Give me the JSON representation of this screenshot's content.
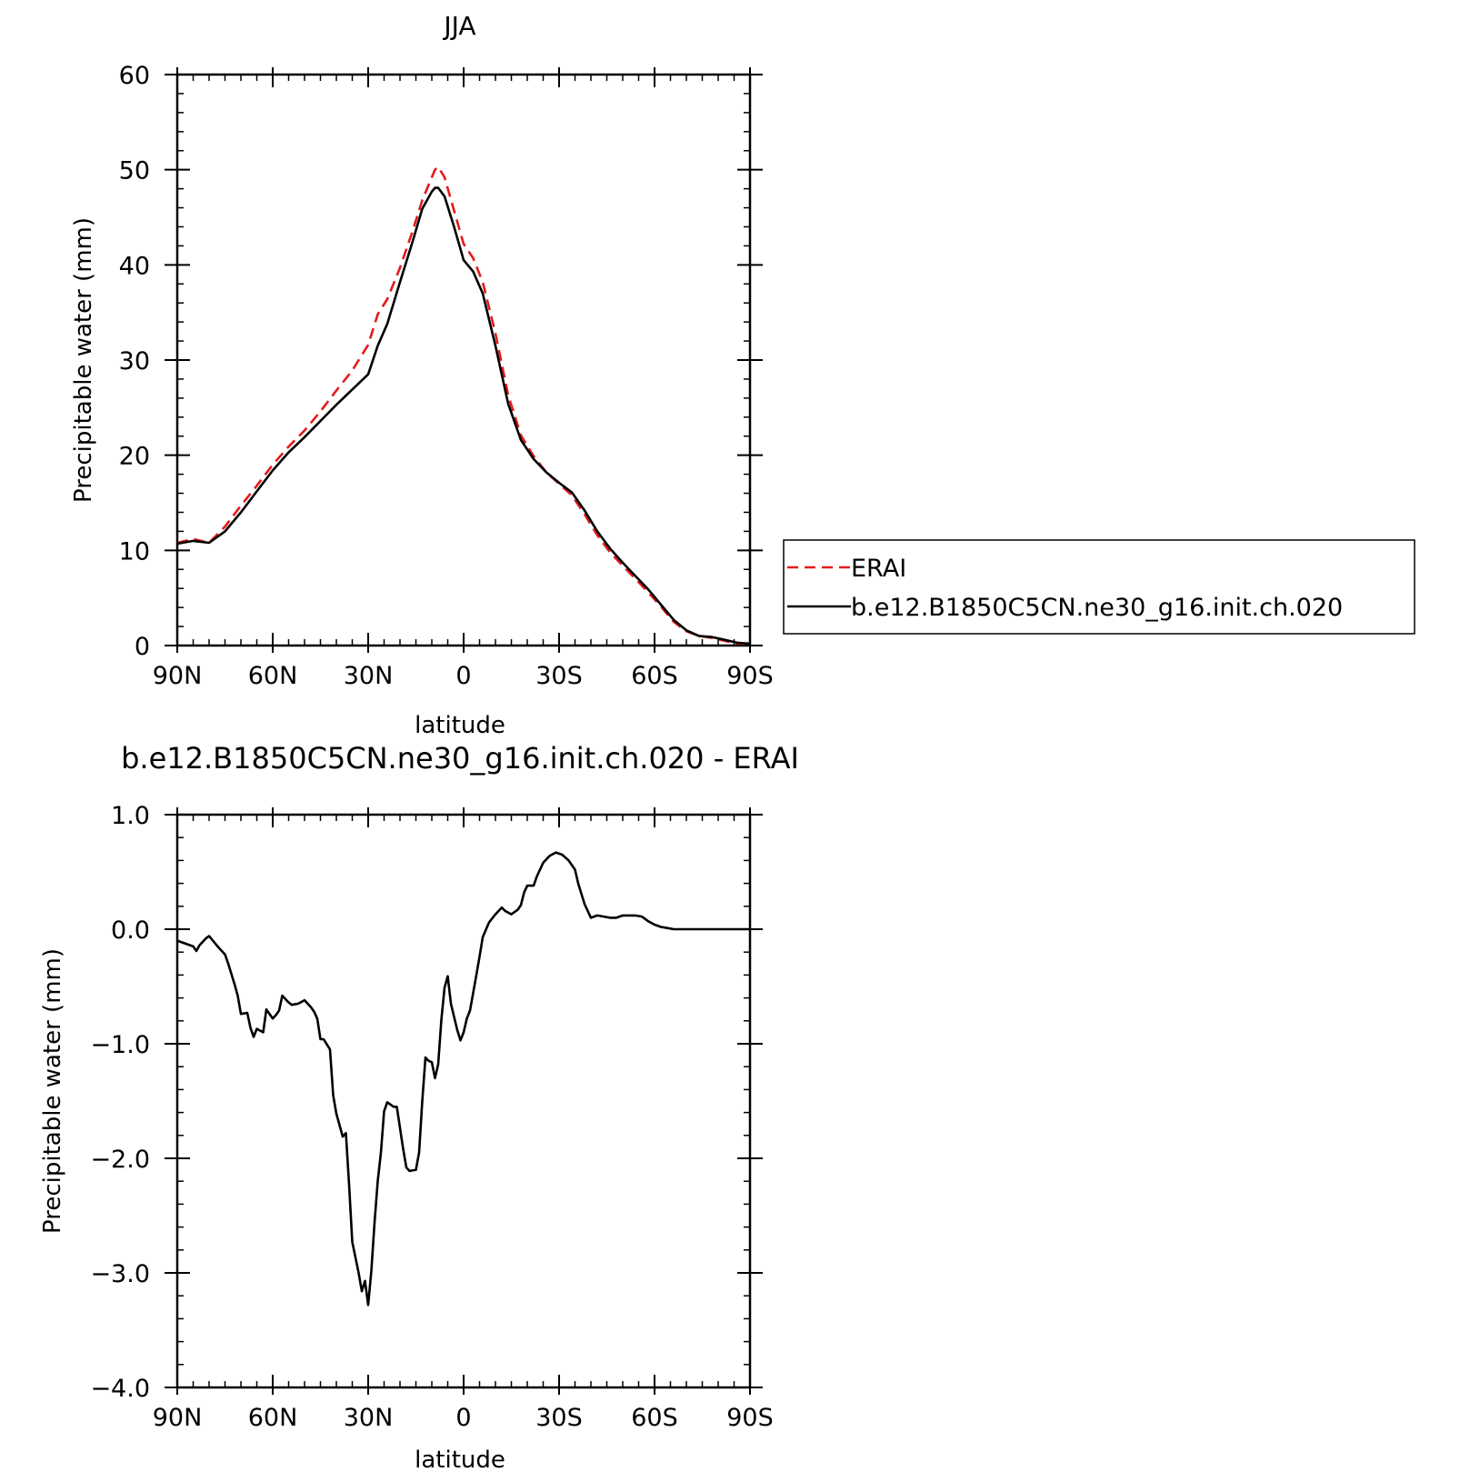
{
  "chart_data": [
    {
      "type": "line",
      "title": "JJA",
      "xlabel": "latitude",
      "ylabel": "Precipitable water (mm)",
      "xlim": [
        90,
        -90
      ],
      "ylim": [
        0,
        60
      ],
      "xticks": [
        90,
        60,
        30,
        0,
        -30,
        -60,
        -90
      ],
      "xtick_labels": [
        "90N",
        "60N",
        "30N",
        "0",
        "30S",
        "60S",
        "90S"
      ],
      "yticks": [
        0,
        10,
        20,
        30,
        40,
        50,
        60
      ],
      "ytick_labels": [
        "0",
        "10",
        "20",
        "30",
        "40",
        "50",
        "60"
      ],
      "legend_position": "right",
      "series": [
        {
          "name": "ERAI",
          "color": "#e41a1c",
          "dash": "dashed",
          "x": [
            90,
            85,
            80,
            75,
            70,
            65,
            60,
            55,
            50,
            45,
            40,
            35,
            30,
            27,
            24,
            20,
            16,
            13,
            10,
            9,
            8,
            6,
            3,
            0,
            -3,
            -6,
            -10,
            -14,
            -18,
            -22,
            -26,
            -30,
            -34,
            -38,
            -42,
            -46,
            -50,
            -54,
            -58,
            -62,
            -66,
            -70,
            -74,
            -78,
            -82,
            -86,
            -90
          ],
          "y": [
            10.8,
            11.2,
            10.8,
            12.5,
            14.7,
            16.8,
            19.0,
            20.9,
            22.6,
            24.6,
            26.8,
            28.9,
            31.6,
            34.8,
            36.4,
            39.7,
            43.6,
            46.8,
            49.2,
            50.0,
            50.3,
            49.2,
            45.7,
            42.2,
            40.7,
            38.2,
            32.8,
            26.3,
            22.1,
            19.9,
            18.2,
            17.0,
            15.8,
            13.8,
            11.6,
            9.8,
            8.4,
            7.0,
            5.6,
            4.1,
            2.5,
            1.5,
            1.0,
            0.8,
            0.5,
            0.2,
            0.2
          ]
        },
        {
          "name": "b.e12.B1850C5CN.ne30_g16.init.ch.020",
          "color": "#000000",
          "dash": "solid",
          "x": [
            90,
            85,
            80,
            75,
            70,
            65,
            60,
            55,
            50,
            45,
            40,
            35,
            30,
            27,
            24,
            20,
            16,
            13,
            10,
            9,
            8,
            6,
            3,
            0,
            -3,
            -6,
            -10,
            -14,
            -18,
            -22,
            -26,
            -30,
            -34,
            -38,
            -42,
            -46,
            -50,
            -54,
            -58,
            -62,
            -66,
            -70,
            -74,
            -78,
            -82,
            -86,
            -90
          ],
          "y": [
            10.7,
            11.0,
            10.8,
            12.0,
            14.0,
            16.2,
            18.4,
            20.3,
            21.9,
            23.6,
            25.3,
            26.9,
            28.5,
            31.5,
            33.8,
            38.2,
            42.5,
            45.9,
            47.7,
            48.1,
            48.1,
            47.2,
            44.0,
            40.5,
            39.3,
            37.0,
            31.5,
            25.4,
            21.6,
            19.6,
            18.2,
            17.1,
            16.1,
            14.2,
            12.0,
            10.2,
            8.7,
            7.3,
            5.9,
            4.3,
            2.7,
            1.6,
            1.0,
            0.9,
            0.6,
            0.3,
            0.2
          ]
        }
      ]
    },
    {
      "type": "line",
      "title": "b.e12.B1850C5CN.ne30_g16.init.ch.020 - ERAI",
      "xlabel": "latitude",
      "ylabel": "Precipitable water (mm)",
      "xlim": [
        90,
        -90
      ],
      "ylim": [
        -4.0,
        1.0
      ],
      "xticks": [
        90,
        60,
        30,
        0,
        -30,
        -60,
        -90
      ],
      "xtick_labels": [
        "90N",
        "60N",
        "30N",
        "0",
        "30S",
        "60S",
        "90S"
      ],
      "yticks": [
        1.0,
        0.0,
        -1.0,
        -2.0,
        -3.0,
        -4.0
      ],
      "ytick_labels": [
        "1.0",
        "0.0",
        "−1.0",
        "−2.0",
        "−3.0",
        "−4.0"
      ],
      "series": [
        {
          "color": "#000000",
          "dash": "solid",
          "x": [
            90,
            87,
            85,
            84,
            83,
            81,
            80,
            77,
            75,
            74,
            72,
            71,
            70,
            68,
            67,
            66,
            65,
            63,
            62,
            60,
            59,
            58,
            57,
            55,
            54,
            52,
            50,
            48,
            47,
            46,
            45,
            44,
            42,
            41,
            40,
            38,
            37,
            36,
            35,
            33,
            32,
            31,
            30,
            29,
            28,
            27,
            26,
            25,
            24,
            22,
            21,
            19,
            18,
            17,
            15,
            14,
            13,
            12,
            11,
            10,
            9,
            8,
            7,
            6,
            5,
            4,
            2,
            1,
            0,
            -1,
            -2,
            -4,
            -5,
            -6,
            -8,
            -10,
            -12,
            -13,
            -15,
            -17,
            -18,
            -19,
            -20,
            -22,
            -23,
            -25,
            -27,
            -29,
            -31,
            -33,
            -35,
            -36,
            -38,
            -40,
            -42,
            -44,
            -46,
            -48,
            -50,
            -52,
            -54,
            -56,
            -58,
            -60,
            -62,
            -64,
            -66,
            -68,
            -70,
            -72,
            -74,
            -76,
            -78,
            -80,
            -82,
            -84,
            -86,
            -88,
            -90
          ],
          "y": [
            -0.1,
            -0.13,
            -0.15,
            -0.19,
            -0.14,
            -0.08,
            -0.06,
            -0.16,
            -0.22,
            -0.3,
            -0.48,
            -0.58,
            -0.74,
            -0.73,
            -0.86,
            -0.94,
            -0.87,
            -0.9,
            -0.7,
            -0.78,
            -0.75,
            -0.71,
            -0.58,
            -0.64,
            -0.66,
            -0.65,
            -0.62,
            -0.68,
            -0.72,
            -0.78,
            -0.96,
            -0.96,
            -1.05,
            -1.45,
            -1.61,
            -1.81,
            -1.78,
            -2.23,
            -2.73,
            -3.0,
            -3.16,
            -3.07,
            -3.28,
            -2.98,
            -2.56,
            -2.2,
            -1.95,
            -1.59,
            -1.51,
            -1.55,
            -1.55,
            -1.92,
            -2.08,
            -2.11,
            -2.1,
            -1.95,
            -1.5,
            -1.12,
            -1.15,
            -1.16,
            -1.3,
            -1.18,
            -0.79,
            -0.51,
            -0.41,
            -0.65,
            -0.88,
            -0.97,
            -0.9,
            -0.78,
            -0.71,
            -0.4,
            -0.24,
            -0.07,
            0.06,
            0.13,
            0.19,
            0.16,
            0.13,
            0.17,
            0.21,
            0.32,
            0.38,
            0.38,
            0.46,
            0.58,
            0.64,
            0.67,
            0.65,
            0.6,
            0.52,
            0.4,
            0.22,
            0.1,
            0.12,
            0.11,
            0.1,
            0.1,
            0.12,
            0.12,
            0.12,
            0.11,
            0.07,
            0.04,
            0.02,
            0.01,
            0.0,
            0.0,
            0.0,
            0.0,
            0.0,
            0.0,
            0.0,
            0.0,
            0.0,
            0.0,
            0.0,
            0.0,
            0.0
          ]
        }
      ]
    }
  ]
}
